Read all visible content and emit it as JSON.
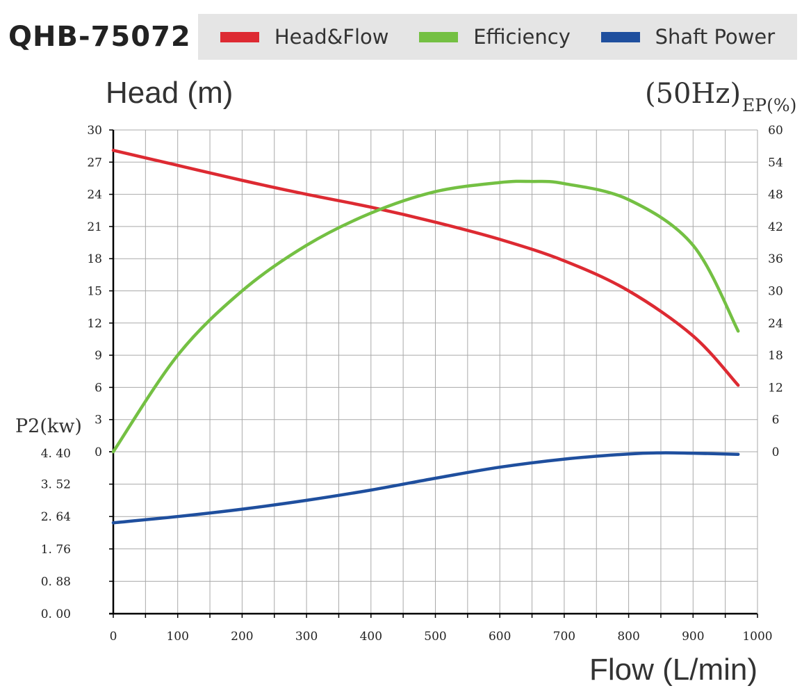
{
  "header": {
    "model": "QHB-75072"
  },
  "legend": [
    {
      "label": "Head&Flow",
      "color": "#dd2a32"
    },
    {
      "label": "Efficiency",
      "color": "#74c043"
    },
    {
      "label": "Shaft Power",
      "color": "#1f4f9e"
    }
  ],
  "chart_data": {
    "type": "line",
    "frequency_label": "(50Hz)",
    "xlabel": "Flow (L/min)",
    "ylabel_head": "Head (m)",
    "ylabel_efficiency": "EP(%)",
    "ylabel_power": "P2(kw)",
    "xlim": [
      0,
      1000
    ],
    "head_ylim": [
      0,
      30
    ],
    "efficiency_ylim": [
      0,
      60
    ],
    "power_ylim": [
      0,
      4.4
    ],
    "x_ticks": [
      "0",
      "100",
      "200",
      "300",
      "400",
      "500",
      "600",
      "700",
      "800",
      "900",
      "1000"
    ],
    "head_ticks": [
      "0",
      "3",
      "6",
      "9",
      "12",
      "15",
      "18",
      "21",
      "24",
      "27",
      "30"
    ],
    "efficiency_ticks": [
      "0",
      "6",
      "12",
      "18",
      "24",
      "30",
      "36",
      "42",
      "48",
      "54",
      "60"
    ],
    "power_ticks": [
      "0.00",
      "0.88",
      "1.76",
      "2.64",
      "3.52",
      "4.40"
    ],
    "grid": true,
    "series": [
      {
        "name": "Head&Flow",
        "axis": "head",
        "color": "#dd2a32",
        "points": [
          [
            0,
            28.1
          ],
          [
            100,
            26.7
          ],
          [
            200,
            25.3
          ],
          [
            300,
            24.0
          ],
          [
            400,
            22.8
          ],
          [
            500,
            21.4
          ],
          [
            600,
            19.8
          ],
          [
            700,
            17.8
          ],
          [
            800,
            15.0
          ],
          [
            900,
            10.8
          ],
          [
            970,
            6.2
          ]
        ]
      },
      {
        "name": "Efficiency",
        "axis": "efficiency",
        "color": "#74c043",
        "points": [
          [
            0,
            0
          ],
          [
            100,
            18.0
          ],
          [
            200,
            30.0
          ],
          [
            300,
            38.5
          ],
          [
            400,
            44.5
          ],
          [
            500,
            48.5
          ],
          [
            600,
            50.2
          ],
          [
            650,
            50.4
          ],
          [
            700,
            50.0
          ],
          [
            800,
            47.0
          ],
          [
            900,
            38.5
          ],
          [
            970,
            22.5
          ]
        ]
      },
      {
        "name": "Shaft Power",
        "axis": "power",
        "color": "#1f4f9e",
        "points": [
          [
            0,
            2.47
          ],
          [
            100,
            2.64
          ],
          [
            200,
            2.84
          ],
          [
            300,
            3.08
          ],
          [
            400,
            3.36
          ],
          [
            500,
            3.68
          ],
          [
            600,
            3.98
          ],
          [
            700,
            4.2
          ],
          [
            800,
            4.34
          ],
          [
            850,
            4.37
          ],
          [
            900,
            4.36
          ],
          [
            970,
            4.33
          ]
        ]
      }
    ]
  }
}
